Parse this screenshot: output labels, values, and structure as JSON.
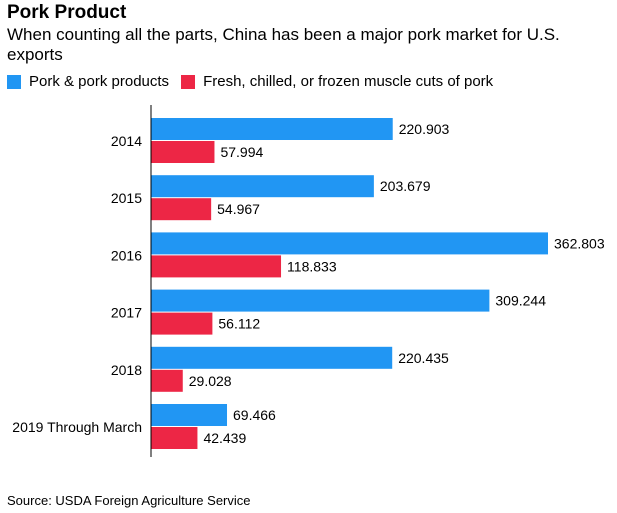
{
  "title": "Pork Product",
  "subtitle": "When counting all the parts, China has been a major pork market for U.S. exports",
  "source": "Source: USDA Foreign Agriculture Service",
  "colors": {
    "series1": "#2196f3",
    "series2": "#ed2645"
  },
  "chart_data": {
    "type": "bar",
    "orientation": "horizontal",
    "categories": [
      "2014",
      "2015",
      "2016",
      "2017",
      "2018",
      "2019 Through March"
    ],
    "series": [
      {
        "name": "Pork & pork products",
        "values": [
          220.903,
          203.679,
          362.803,
          309.244,
          220.435,
          69.466
        ]
      },
      {
        "name": "Fresh, chilled, or frozen muscle cuts of pork",
        "values": [
          57.994,
          54.967,
          118.833,
          56.112,
          29.028,
          42.439
        ]
      }
    ],
    "value_labels": [
      [
        "220.903",
        "203.679",
        "362.803",
        "309.244",
        "220.435",
        "69.466"
      ],
      [
        "57.994",
        "54.967",
        "118.833",
        "56.112",
        "29.028",
        "42.439"
      ]
    ],
    "xlim": [
      0,
      362.803
    ],
    "legend_position": "top-left",
    "grid": false
  }
}
